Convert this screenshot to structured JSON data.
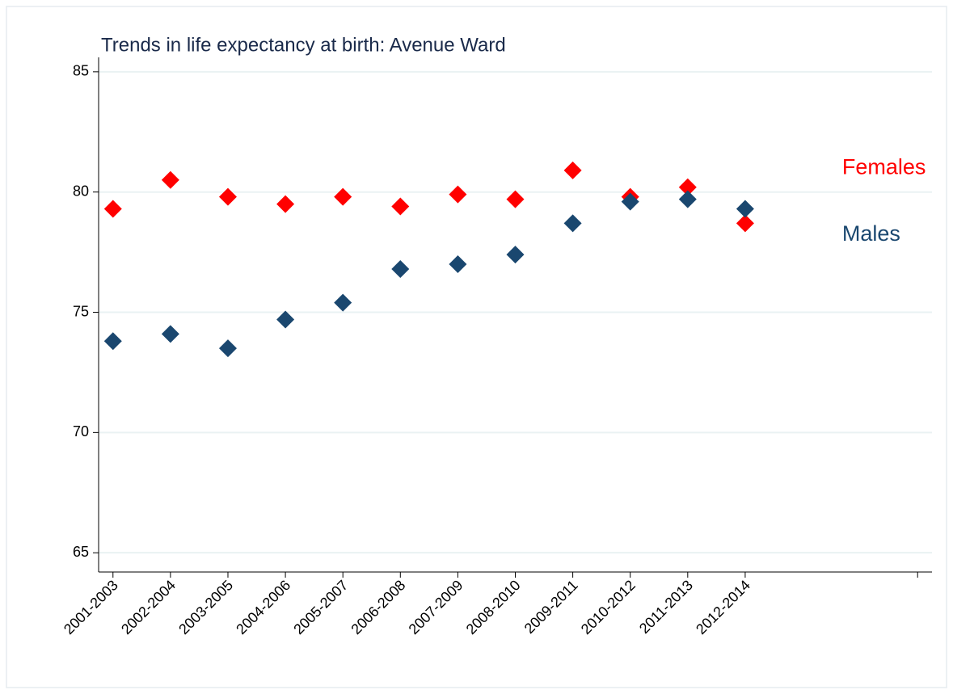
{
  "chart_data": {
    "type": "scatter",
    "title": "Trends in life expectancy at birth: Avenue Ward",
    "x": [
      1,
      2,
      3,
      4,
      5,
      6,
      7,
      8,
      9,
      10,
      11,
      12
    ],
    "series": [
      {
        "name": "Females",
        "color": "#ff0000",
        "values": [
          79.3,
          80.5,
          79.8,
          79.5,
          79.8,
          79.4,
          79.9,
          79.7,
          80.9,
          79.8,
          80.2,
          78.7
        ]
      },
      {
        "name": "Males",
        "color": "#1a476f",
        "values": [
          73.8,
          74.1,
          73.5,
          74.7,
          75.4,
          76.8,
          77.0,
          77.4,
          78.7,
          79.6,
          79.7,
          79.3
        ]
      }
    ],
    "xlim": [
      0.75,
      15.25
    ],
    "xticks": [
      {
        "value": 1,
        "label": "2001-2003"
      },
      {
        "value": 2,
        "label": "2002-2004"
      },
      {
        "value": 3,
        "label": "2003-2005"
      },
      {
        "value": 4,
        "label": "2004-2006"
      },
      {
        "value": 5,
        "label": "2005-2007"
      },
      {
        "value": 6,
        "label": "2006-2008"
      },
      {
        "value": 7,
        "label": "2007-2009"
      },
      {
        "value": 8,
        "label": "2008-2010"
      },
      {
        "value": 9,
        "label": "2009-2011"
      },
      {
        "value": 10,
        "label": "2010-2012"
      },
      {
        "value": 11,
        "label": "2011-2013"
      },
      {
        "value": 12,
        "label": "2012-2014"
      },
      {
        "value": 15,
        "label": null
      }
    ],
    "ylim": [
      64.2,
      85.6
    ],
    "yticks": [
      65,
      70,
      75,
      80,
      85
    ],
    "grid": true
  }
}
